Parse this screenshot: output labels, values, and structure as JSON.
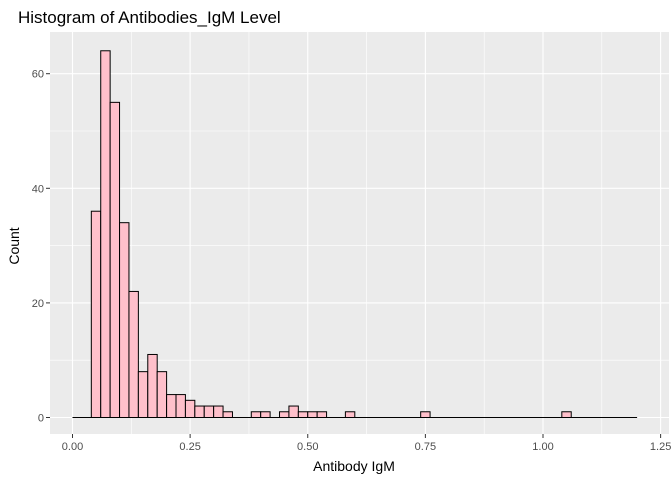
{
  "chart_data": {
    "type": "bar",
    "subtype": "histogram",
    "title": "Histogram of Antibodies_IgM Level",
    "xlabel": "Antibody IgM",
    "ylabel": "Count",
    "xlim": [
      0,
      1.25
    ],
    "ylim": [
      0,
      65
    ],
    "x_ticks": [
      0.0,
      0.25,
      0.5,
      0.75,
      1.0,
      1.25
    ],
    "x_tick_labels": [
      "0.00",
      "0.25",
      "0.50",
      "0.75",
      "1.00",
      "1.25"
    ],
    "y_ticks": [
      0,
      20,
      40,
      60
    ],
    "y_tick_labels": [
      "0",
      "20",
      "40",
      "60"
    ],
    "bin_start": 0.0,
    "bin_width": 0.02,
    "bin_end": 1.2,
    "values": [
      0,
      0,
      36,
      64,
      55,
      34,
      22,
      8,
      11,
      8,
      4,
      4,
      3,
      2,
      2,
      2,
      1,
      0,
      0,
      1,
      1,
      0,
      1,
      2,
      1,
      1,
      1,
      0,
      0,
      1,
      0,
      0,
      0,
      0,
      0,
      0,
      0,
      1,
      0,
      0,
      0,
      0,
      0,
      0,
      0,
      0,
      0,
      0,
      0,
      0,
      0,
      0,
      1,
      0,
      0,
      0,
      0,
      0,
      0,
      0
    ],
    "fill_color": "#FFC0CB",
    "edge_color": "#000000",
    "panel_background": "#EBEBEB",
    "grid_color": "#FFFFFF",
    "grid": true,
    "legend": "none"
  }
}
